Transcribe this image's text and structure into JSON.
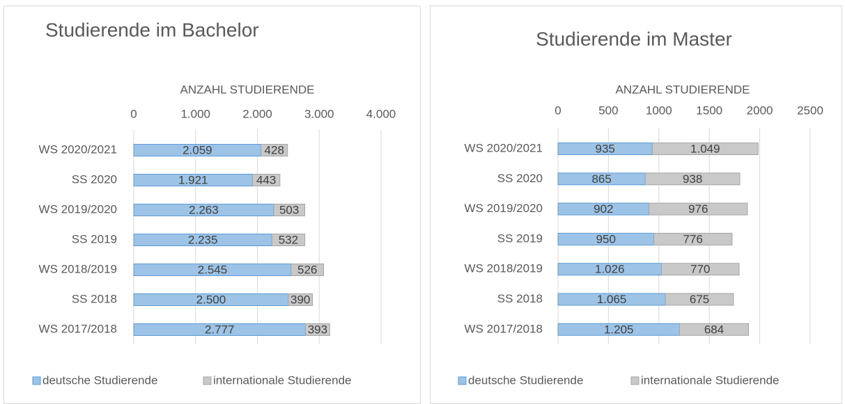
{
  "chart_data": [
    {
      "type": "bar",
      "orientation": "horizontal",
      "stacked": true,
      "title": "Studierende im Bachelor",
      "x_label": "ANZAHL STUDIERENDE",
      "categories": [
        "WS 2020/2021",
        "SS 2020",
        "WS 2019/2020",
        "SS 2019",
        "WS 2018/2019",
        "SS 2018",
        "WS 2017/2018"
      ],
      "series": [
        {
          "name": "deutsche Studierende",
          "color": "#9dc3e6",
          "values": [
            2059,
            1921,
            2263,
            2235,
            2545,
            2500,
            2777
          ],
          "value_labels": [
            "2.059",
            "1.921",
            "2.263",
            "2.235",
            "2.545",
            "2.500",
            "2.777"
          ]
        },
        {
          "name": "internationale Studierende",
          "color": "#c9c9c9",
          "values": [
            428,
            443,
            503,
            532,
            526,
            390,
            393
          ]
        }
      ],
      "xlim": [
        0,
        4000
      ],
      "xticks": [
        0,
        {
          "value": 1000,
          "label": "1.000"
        },
        {
          "value": 2000,
          "label": "2.000"
        },
        {
          "value": 3000,
          "label": "3.000"
        },
        {
          "value": 4000,
          "label": "4.000"
        }
      ],
      "grid": true,
      "legend": "bottom"
    },
    {
      "type": "bar",
      "orientation": "horizontal",
      "stacked": true,
      "title": "Studierende im Master",
      "x_label": "ANZAHL STUDIERENDE",
      "categories": [
        "WS 2020/2021",
        "SS 2020",
        "WS 2019/2020",
        "SS 2019",
        "WS 2018/2019",
        "SS 2018",
        "WS 2017/2018"
      ],
      "series": [
        {
          "name": "deutsche Studierende",
          "color": "#9dc3e6",
          "values": [
            935,
            865,
            902,
            950,
            1026,
            1065,
            1205
          ],
          "value_labels": [
            "935",
            "865",
            "902",
            "950",
            "1.026",
            "1.065",
            "1.205"
          ]
        },
        {
          "name": "internationale Studierende",
          "color": "#c9c9c9",
          "values": [
            1049,
            938,
            976,
            776,
            770,
            675,
            684
          ],
          "value_labels": [
            "1.049",
            "938",
            "976",
            "776",
            "770",
            "675",
            "684"
          ]
        }
      ],
      "xlim": [
        0,
        2500
      ],
      "xticks": [
        0,
        500,
        1000,
        1500,
        2000,
        2500
      ],
      "grid": true,
      "legend": "bottom"
    }
  ]
}
